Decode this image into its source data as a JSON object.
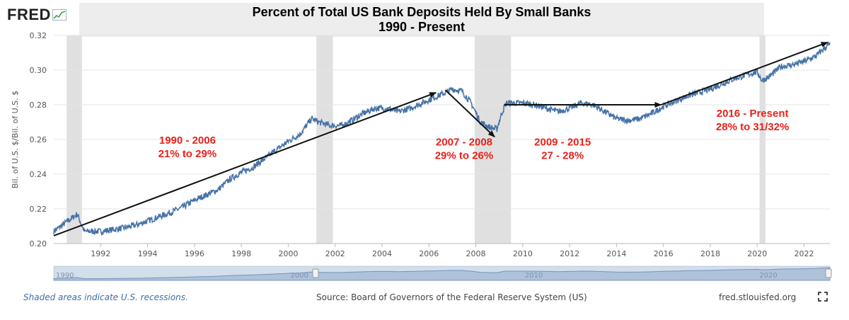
{
  "logo": {
    "text": "FRED",
    "icon": "fred-chart-icon"
  },
  "footer": {
    "recession_note": "Shaded areas indicate U.S. recessions.",
    "source": "Source: Board of Governors of the Federal Reserve System (US)",
    "site": "fred.stlouisfed.org",
    "fullscreen_icon": "fullscreen-icon"
  },
  "colors": {
    "series": "#4572a7",
    "annotation": "#e8211b",
    "recession": "#e0e0e0",
    "navigator_fill": "#c6d3e6"
  },
  "chart_data": {
    "type": "line",
    "title": "Percent of Total US Bank Deposits Held By Small Banks",
    "subtitle": "1990 - Present",
    "ylabel": "Bil. of U.S. $/Bil. of U.S. $",
    "xlabel": "",
    "xlim": [
      1990.0,
      2023.1
    ],
    "ylim": [
      0.2,
      0.32
    ],
    "grid": true,
    "xticks": [
      "1992",
      "1994",
      "1996",
      "1998",
      "2000",
      "2002",
      "2004",
      "2006",
      "2008",
      "2010",
      "2012",
      "2014",
      "2016",
      "2018",
      "2020",
      "2022"
    ],
    "yticks": [
      "0.20",
      "0.22",
      "0.24",
      "0.26",
      "0.28",
      "0.30",
      "0.32"
    ],
    "navigator_labels": [
      "1990",
      "2000",
      "2010",
      "2020"
    ],
    "recessions": [
      [
        1990.55,
        1991.2
      ],
      [
        2001.2,
        2001.9
      ],
      [
        2007.95,
        2009.5
      ],
      [
        2020.1,
        2020.35
      ]
    ],
    "series": [
      {
        "x": [
          1990.0,
          1990.5,
          1991.0,
          1991.3,
          1992.0,
          1993.0,
          1993.6,
          1994.0,
          1994.6,
          1995.0,
          1995.5,
          1996.0,
          1996.5,
          1997.0,
          1997.5,
          1998.0,
          1998.5,
          1999.0,
          1999.5,
          2000.0,
          2000.5,
          2001.0,
          2001.3,
          2001.8,
          2002.3,
          2002.7,
          2003.2,
          2003.7,
          2004.2,
          2004.7,
          2005.2,
          2005.7,
          2006.2,
          2006.7,
          2007.0,
          2007.4,
          2007.8,
          2008.2,
          2008.6,
          2008.9,
          2009.1,
          2009.3,
          2009.6,
          2010.0,
          2010.5,
          2011.0,
          2011.5,
          2012.0,
          2012.5,
          2013.0,
          2013.5,
          2014.0,
          2014.5,
          2015.0,
          2015.5,
          2016.0,
          2016.5,
          2017.0,
          2017.5,
          2018.0,
          2018.5,
          2019.0,
          2019.5,
          2020.0,
          2020.2,
          2020.5,
          2021.0,
          2021.5,
          2022.0,
          2022.5,
          2022.9,
          2023.1
        ],
        "y": [
          0.207,
          0.212,
          0.217,
          0.207,
          0.207,
          0.209,
          0.211,
          0.213,
          0.216,
          0.218,
          0.221,
          0.225,
          0.228,
          0.231,
          0.237,
          0.241,
          0.244,
          0.249,
          0.254,
          0.259,
          0.263,
          0.272,
          0.27,
          0.268,
          0.268,
          0.271,
          0.275,
          0.278,
          0.278,
          0.276,
          0.278,
          0.281,
          0.284,
          0.287,
          0.289,
          0.288,
          0.281,
          0.27,
          0.267,
          0.266,
          0.275,
          0.281,
          0.281,
          0.281,
          0.28,
          0.278,
          0.276,
          0.278,
          0.281,
          0.28,
          0.276,
          0.272,
          0.271,
          0.272,
          0.275,
          0.279,
          0.282,
          0.285,
          0.287,
          0.289,
          0.292,
          0.295,
          0.297,
          0.299,
          0.294,
          0.296,
          0.302,
          0.303,
          0.305,
          0.308,
          0.313,
          0.315
        ]
      }
    ],
    "annotations": [
      {
        "lines": [
          "1990 - 2006",
          "21% to 29%"
        ],
        "x": 1995.7,
        "y": 0.2575
      },
      {
        "lines": [
          "2007 - 2008",
          "29% to 26%"
        ],
        "x": 2007.5,
        "y": 0.2565
      },
      {
        "lines": [
          "2009 - 2015",
          "27 - 28%"
        ],
        "x": 2011.7,
        "y": 0.2565
      },
      {
        "lines": [
          "2016 - Present",
          "28% to 31/32%"
        ],
        "x": 2019.8,
        "y": 0.273
      }
    ],
    "arrows": [
      {
        "from": [
          1990.0,
          0.2045
        ],
        "to": [
          2006.3,
          0.287
        ]
      },
      {
        "from": [
          2006.7,
          0.2885
        ],
        "to": [
          2008.8,
          0.2615
        ]
      },
      {
        "from": [
          2009.2,
          0.28
        ],
        "to": [
          2015.9,
          0.28
        ]
      },
      {
        "from": [
          2015.9,
          0.28
        ],
        "to": [
          2023.0,
          0.316
        ]
      }
    ]
  }
}
